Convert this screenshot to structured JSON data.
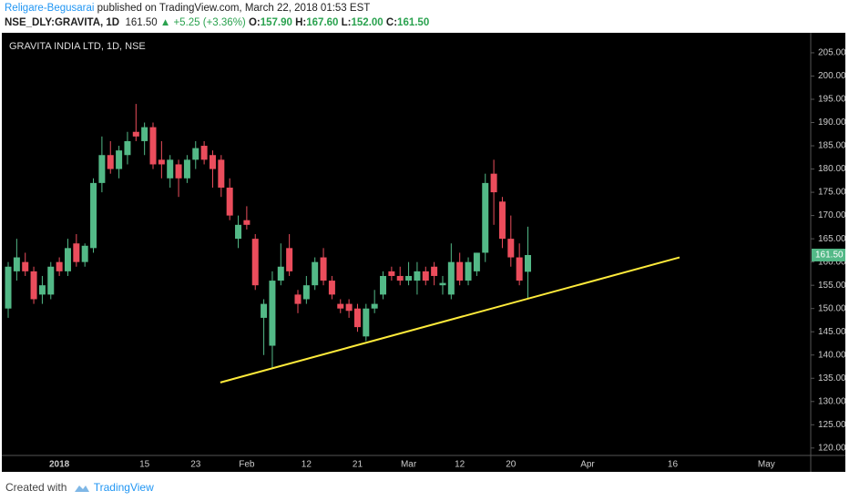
{
  "header": {
    "author": "Religare-Begusarai",
    "published": "published on TradingView.com, March 22, 2018 01:53 EST",
    "symbol": "NSE_DLY:GRAVITA, 1D",
    "price": "161.50",
    "change": "▲ +5.25 (+3.36%)",
    "o_label": "O:",
    "o_value": "157.90",
    "h_label": "H:",
    "h_value": "167.60",
    "l_label": "L:",
    "l_value": "152.00",
    "c_label": "C:",
    "c_value": "161.50"
  },
  "footer": {
    "created": "Created with",
    "brand": "TradingView"
  },
  "chart_data": {
    "type": "candlestick",
    "title": "GRAVITA INDIA LTD, 1D, NSE",
    "up_color": "#53b987",
    "down_color": "#eb4d5c",
    "categories": [
      null,
      null,
      null,
      null,
      null,
      null,
      "2018",
      null,
      null,
      null,
      null,
      null,
      null,
      null,
      null,
      null,
      "15",
      null,
      null,
      null,
      null,
      null,
      "23",
      null,
      null,
      null,
      null,
      null,
      "Feb",
      null,
      null,
      null,
      null,
      null,
      null,
      "12",
      null,
      null,
      null,
      null,
      null,
      "21",
      null,
      null,
      null,
      null,
      null,
      "Mar",
      null,
      null,
      null,
      null,
      null,
      "12",
      null,
      null,
      null,
      null,
      null,
      "20",
      null,
      null,
      null,
      null,
      null,
      null,
      null,
      null,
      "Apr",
      null,
      null,
      null,
      null,
      null,
      null,
      null,
      null,
      null,
      "16",
      null,
      null,
      null,
      null,
      null,
      null,
      null,
      null,
      null,
      null,
      "May",
      null,
      null,
      null,
      null
    ],
    "open": [
      150,
      158,
      160,
      158,
      153,
      153,
      160,
      158,
      164,
      160,
      163,
      177,
      183,
      180,
      183,
      188,
      186,
      189,
      182,
      178,
      181,
      178,
      182,
      185,
      183,
      182,
      176,
      165,
      169,
      165,
      148,
      142,
      156,
      163,
      153,
      152,
      155,
      161,
      156,
      151,
      151,
      150,
      144,
      150,
      153,
      158,
      157,
      156,
      156,
      158,
      159,
      155,
      153,
      160,
      156,
      158,
      162,
      179,
      173,
      165,
      161,
      157.9,
      null,
      null,
      null,
      null,
      null,
      null,
      null,
      null,
      null,
      null,
      null,
      null,
      null,
      null,
      null,
      null,
      null,
      null,
      null,
      null,
      null,
      null,
      null,
      null,
      null,
      null,
      null,
      null,
      null,
      null,
      null,
      null
    ],
    "high": [
      160,
      165,
      162,
      159,
      157,
      160,
      161,
      165,
      166,
      164,
      178,
      187,
      186,
      185,
      188,
      194,
      190,
      190,
      186,
      183,
      182,
      183,
      186,
      186,
      184,
      183,
      178,
      170,
      172,
      166,
      152,
      158,
      164,
      166,
      154,
      157,
      161,
      163,
      157,
      152,
      152,
      151,
      151,
      154,
      158,
      159,
      159,
      160,
      160,
      159,
      160,
      157,
      164,
      162,
      161,
      162,
      179,
      182,
      174,
      170,
      164,
      167.6,
      null,
      null,
      null,
      null,
      null,
      null,
      null,
      null,
      null,
      null,
      null,
      null,
      null,
      null,
      null,
      null,
      null,
      null,
      null,
      null,
      null,
      null,
      null,
      null,
      null,
      null,
      null,
      null,
      null,
      null,
      null,
      null
    ],
    "low": [
      148,
      156,
      157,
      151,
      151,
      152,
      157,
      157,
      159,
      159,
      162,
      175,
      179,
      178,
      181,
      186,
      183,
      180,
      178,
      176,
      174,
      177,
      180,
      181,
      176,
      174,
      169,
      163,
      167,
      154,
      140,
      137,
      155,
      157,
      149,
      151,
      154,
      155,
      152,
      149,
      148,
      145,
      143,
      149,
      152,
      156,
      155,
      155,
      153,
      155,
      155,
      153,
      152,
      155,
      155,
      157,
      160,
      168,
      163,
      159,
      155,
      152,
      null,
      null,
      null,
      null,
      null,
      null,
      null,
      null,
      null,
      null,
      null,
      null,
      null,
      null,
      null,
      null,
      null,
      null,
      null,
      null,
      null,
      null,
      null,
      null,
      null,
      null,
      null,
      null,
      null,
      null,
      null,
      null
    ],
    "close": [
      159,
      161,
      158,
      152,
      155,
      159,
      158,
      163,
      160,
      163.5,
      177,
      183,
      180,
      184,
      186,
      187,
      189,
      181,
      181,
      182,
      178,
      182,
      184.5,
      182,
      180,
      176,
      170,
      168,
      168,
      155,
      151,
      156,
      159,
      158,
      151,
      155,
      160,
      156,
      153,
      150,
      149.5,
      146,
      150,
      151,
      157,
      157,
      156,
      157,
      158,
      156,
      157,
      155.5,
      160,
      156,
      160,
      162,
      177,
      175,
      165,
      161,
      156,
      161.5,
      null,
      null,
      null,
      null,
      null,
      null,
      null,
      null,
      null,
      null,
      null,
      null,
      null,
      null,
      null,
      null,
      null,
      null,
      null,
      null,
      null,
      null,
      null,
      null,
      null,
      null,
      null,
      null,
      null,
      null,
      null,
      null
    ],
    "trendline": {
      "color": "#ffeb3b",
      "x": [
        24.9,
        78.8
      ],
      "y": [
        134.1,
        161.0
      ]
    },
    "price_marker": {
      "value": 161.5,
      "label": "161.50"
    },
    "xlim": [
      -0.75,
      94.2
    ],
    "ylim": [
      118.4,
      209.3
    ],
    "yticks": [
      {
        "value": 120,
        "label": "120.00"
      },
      {
        "value": 125,
        "label": "125.00"
      },
      {
        "value": 130,
        "label": "130.00"
      },
      {
        "value": 135,
        "label": "135.00"
      },
      {
        "value": 140,
        "label": "140.00"
      },
      {
        "value": 145,
        "label": "145.00"
      },
      {
        "value": 150,
        "label": "150.00"
      },
      {
        "value": 155,
        "label": "155.00"
      },
      {
        "value": 160,
        "label": "160.00"
      },
      {
        "value": 165,
        "label": "165.00"
      },
      {
        "value": 170,
        "label": "170.00"
      },
      {
        "value": 175,
        "label": "175.00"
      },
      {
        "value": 180,
        "label": "180.00"
      },
      {
        "value": 185,
        "label": "185.00"
      },
      {
        "value": 190,
        "label": "190.00"
      },
      {
        "value": 195,
        "label": "195.00"
      },
      {
        "value": 200,
        "label": "200.00"
      },
      {
        "value": 205,
        "label": "205.00"
      }
    ],
    "grid": false
  }
}
